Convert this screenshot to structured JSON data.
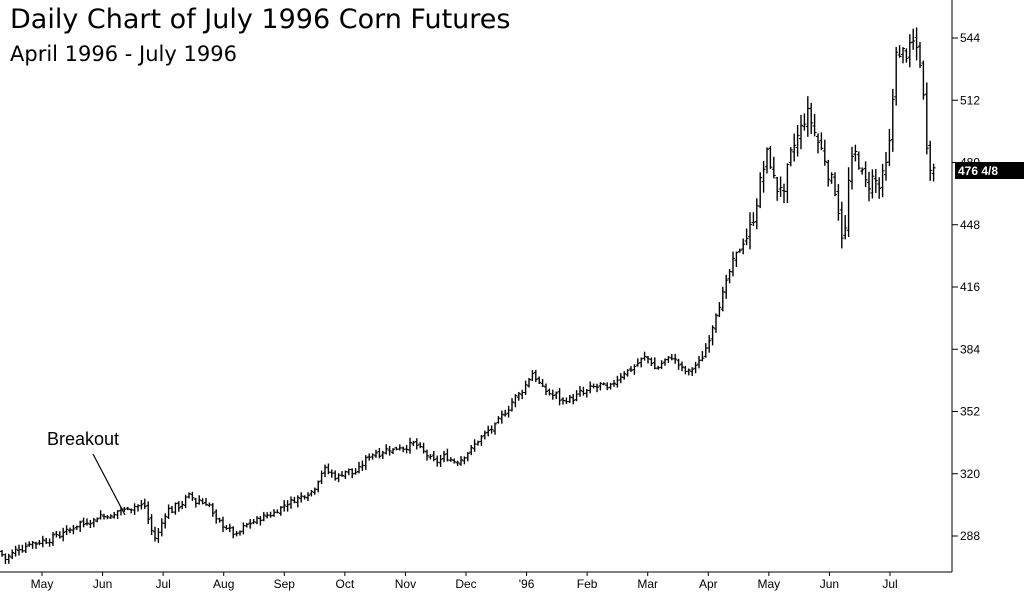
{
  "chart_data": {
    "type": "ohlc",
    "title": "Daily Chart of July 1996 Corn Futures",
    "subtitle": "April 1996 - July 1996",
    "ylim": [
      270,
      556
    ],
    "y_ticks": [
      288,
      320,
      352,
      384,
      416,
      448,
      480,
      512,
      544
    ],
    "x_tick_labels": [
      "May",
      "Jun",
      "Jul",
      "Aug",
      "Sep",
      "Oct",
      "Nov",
      "Dec",
      "'96",
      "Feb",
      "Mar",
      "Apr",
      "May",
      "Jun",
      "Jul"
    ],
    "current_price_label": "476 4/8",
    "current_price": 476.5,
    "annotation": {
      "text": "Breakout"
    },
    "series": [
      {
        "values": [
          [
            0,
            280
          ],
          [
            5,
            276
          ],
          [
            10,
            278
          ],
          [
            14,
            280
          ],
          [
            18,
            282
          ],
          [
            22,
            281
          ],
          [
            26,
            283
          ],
          [
            30,
            285
          ],
          [
            35,
            284
          ],
          [
            40,
            285
          ],
          [
            44,
            286
          ],
          [
            48,
            285
          ],
          [
            52,
            287
          ],
          [
            56,
            289
          ],
          [
            60,
            288
          ],
          [
            64,
            291
          ],
          [
            68,
            290
          ],
          [
            72,
            292
          ],
          [
            76,
            293
          ],
          [
            80,
            295
          ],
          [
            84,
            294
          ],
          [
            88,
            296
          ],
          [
            92,
            295
          ],
          [
            96,
            297
          ],
          [
            100,
            299
          ],
          [
            104,
            298
          ],
          [
            108,
            299
          ],
          [
            112,
            297
          ],
          [
            116,
            300
          ],
          [
            120,
            302
          ],
          [
            124,
            301
          ],
          [
            128,
            303
          ],
          [
            132,
            302
          ],
          [
            136,
            304
          ],
          [
            140,
            303
          ],
          [
            144,
            305
          ],
          [
            148,
            297
          ],
          [
            152,
            290
          ],
          [
            156,
            286
          ],
          [
            160,
            292
          ],
          [
            164,
            298
          ],
          [
            168,
            302
          ],
          [
            172,
            301
          ],
          [
            176,
            304
          ],
          [
            180,
            303
          ],
          [
            184,
            306
          ],
          [
            188,
            309
          ],
          [
            192,
            308
          ],
          [
            196,
            305
          ],
          [
            200,
            307
          ],
          [
            204,
            304
          ],
          [
            208,
            306
          ],
          [
            212,
            300
          ],
          [
            216,
            296
          ],
          [
            220,
            295
          ],
          [
            224,
            293
          ],
          [
            228,
            292
          ],
          [
            232,
            290
          ],
          [
            236,
            288
          ],
          [
            240,
            290
          ],
          [
            244,
            293
          ],
          [
            248,
            294
          ],
          [
            252,
            295
          ],
          [
            256,
            296
          ],
          [
            260,
            297
          ],
          [
            264,
            298
          ],
          [
            268,
            299
          ],
          [
            272,
            299
          ],
          [
            276,
            301
          ],
          [
            280,
            302
          ],
          [
            284,
            304
          ],
          [
            288,
            305
          ],
          [
            292,
            306
          ],
          [
            296,
            307
          ],
          [
            300,
            308
          ],
          [
            304,
            309
          ],
          [
            308,
            310
          ],
          [
            312,
            311
          ],
          [
            316,
            314
          ],
          [
            320,
            319
          ],
          [
            324,
            323
          ],
          [
            328,
            321
          ],
          [
            332,
            320
          ],
          [
            336,
            318
          ],
          [
            340,
            319
          ],
          [
            344,
            321
          ],
          [
            348,
            322
          ],
          [
            352,
            320
          ],
          [
            356,
            321
          ],
          [
            360,
            323
          ],
          [
            364,
            326
          ],
          [
            368,
            329
          ],
          [
            372,
            330
          ],
          [
            376,
            331
          ],
          [
            380,
            330
          ],
          [
            384,
            332
          ],
          [
            388,
            333
          ],
          [
            392,
            332
          ],
          [
            396,
            333
          ],
          [
            400,
            334
          ],
          [
            404,
            333
          ],
          [
            408,
            334
          ],
          [
            412,
            336
          ],
          [
            416,
            335
          ],
          [
            420,
            333
          ],
          [
            424,
            331
          ],
          [
            428,
            329
          ],
          [
            432,
            327
          ],
          [
            436,
            326
          ],
          [
            440,
            327
          ],
          [
            444,
            329
          ],
          [
            448,
            328
          ],
          [
            452,
            327
          ],
          [
            456,
            326
          ],
          [
            460,
            327
          ],
          [
            464,
            329
          ],
          [
            468,
            331
          ],
          [
            472,
            333
          ],
          [
            476,
            336
          ],
          [
            480,
            338
          ],
          [
            484,
            340
          ],
          [
            488,
            342
          ],
          [
            492,
            343
          ],
          [
            496,
            345
          ],
          [
            500,
            349
          ],
          [
            504,
            351
          ],
          [
            508,
            353
          ],
          [
            512,
            357
          ],
          [
            516,
            360
          ],
          [
            520,
            361
          ],
          [
            524,
            364
          ],
          [
            528,
            368
          ],
          [
            532,
            372
          ],
          [
            536,
            369
          ],
          [
            540,
            366
          ],
          [
            544,
            363
          ],
          [
            548,
            362
          ],
          [
            552,
            360
          ],
          [
            556,
            361
          ],
          [
            560,
            358
          ],
          [
            564,
            357
          ],
          [
            568,
            359
          ],
          [
            572,
            358
          ],
          [
            576,
            360
          ],
          [
            580,
            362
          ],
          [
            584,
            361
          ],
          [
            588,
            363
          ],
          [
            592,
            365
          ],
          [
            596,
            364
          ],
          [
            600,
            366
          ],
          [
            604,
            365
          ],
          [
            608,
            363
          ],
          [
            612,
            366
          ],
          [
            616,
            368
          ],
          [
            620,
            370
          ],
          [
            624,
            372
          ],
          [
            628,
            373
          ],
          [
            632,
            374
          ],
          [
            636,
            376
          ],
          [
            640,
            378
          ],
          [
            644,
            380
          ],
          [
            648,
            379
          ],
          [
            652,
            377
          ],
          [
            656,
            373
          ],
          [
            660,
            376
          ],
          [
            664,
            378
          ],
          [
            668,
            379
          ],
          [
            672,
            380
          ],
          [
            676,
            378
          ],
          [
            680,
            375
          ],
          [
            684,
            373
          ],
          [
            688,
            372
          ],
          [
            692,
            374
          ],
          [
            696,
            376
          ],
          [
            700,
            378
          ],
          [
            704,
            382
          ],
          [
            708,
            388
          ],
          [
            712,
            395
          ],
          [
            716,
            403
          ],
          [
            720,
            408
          ],
          [
            724,
            414
          ],
          [
            728,
            421
          ],
          [
            732,
            428
          ],
          [
            736,
            432
          ],
          [
            740,
            436
          ],
          [
            744,
            440
          ],
          [
            748,
            443
          ],
          [
            752,
            449
          ],
          [
            756,
            458
          ],
          [
            760,
            469
          ],
          [
            764,
            478
          ],
          [
            768,
            486
          ],
          [
            772,
            476
          ],
          [
            776,
            465
          ],
          [
            780,
            470
          ],
          [
            784,
            462
          ],
          [
            788,
            478
          ],
          [
            792,
            486
          ],
          [
            796,
            491
          ],
          [
            800,
            496
          ],
          [
            804,
            502
          ],
          [
            808,
            505
          ],
          [
            812,
            500
          ],
          [
            816,
            493
          ],
          [
            820,
            488
          ],
          [
            824,
            484
          ],
          [
            828,
            475
          ],
          [
            832,
            470
          ],
          [
            836,
            465
          ],
          [
            840,
            450
          ],
          [
            844,
            435
          ],
          [
            848,
            468
          ],
          [
            852,
            480
          ],
          [
            856,
            485
          ],
          [
            860,
            478
          ],
          [
            864,
            470
          ],
          [
            868,
            468
          ],
          [
            872,
            472
          ],
          [
            876,
            470
          ],
          [
            880,
            466
          ],
          [
            884,
            476
          ],
          [
            888,
            480
          ],
          [
            892,
            506
          ],
          [
            896,
            540
          ],
          [
            900,
            532
          ],
          [
            904,
            538
          ],
          [
            908,
            535
          ],
          [
            912,
            542
          ],
          [
            916,
            540
          ],
          [
            920,
            532
          ],
          [
            924,
            510
          ],
          [
            928,
            482
          ],
          [
            932,
            477
          ],
          [
            934,
            476.5
          ]
        ]
      }
    ]
  }
}
